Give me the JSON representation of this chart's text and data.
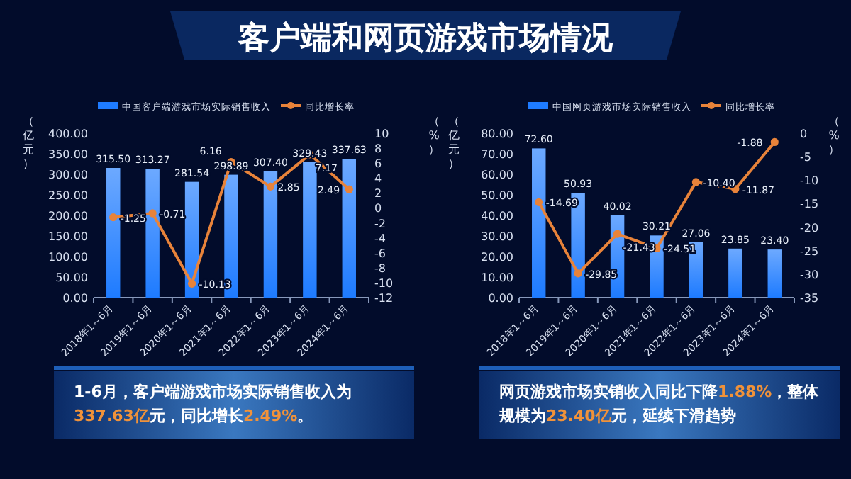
{
  "chart_data": [
    {
      "type": "bar",
      "title": "客户端和网页游戏市场情况",
      "ylabel": "（亿元）",
      "categories": [
        "2018年1～6月",
        "2019年1～6月",
        "2020年1～6月",
        "2021年1～6月",
        "2022年1～6月",
        "2023年1～6月",
        "2024年1～6月"
      ],
      "series": [
        {
          "name": "中国客户端游戏市场实际销售收入",
          "color": "#1e7bff",
          "values": [
            315.5,
            313.27,
            281.54,
            298.89,
            307.4,
            329.43,
            337.63
          ],
          "value_labels": [
            "315.50",
            "313.27",
            "281.54",
            "298.89",
            "307.40",
            "329.43",
            "337.63"
          ]
        },
        {
          "name": "同比增长率",
          "type": "line",
          "axis": "y2",
          "color": "#e8833a",
          "values": [
            -1.25,
            -0.71,
            -10.13,
            6.16,
            2.85,
            7.17,
            2.49
          ],
          "value_labels": [
            "-1.25",
            "-0.71",
            "-10.13",
            "6.16",
            "2.85",
            "7.17",
            "2.49"
          ]
        }
      ],
      "ylim": [
        0,
        400
      ],
      "yticks": [
        {
          "value": 0,
          "label": "0.00"
        },
        {
          "value": 50,
          "label": "50.00"
        },
        {
          "value": 100,
          "label": "100.00"
        },
        {
          "value": 150,
          "label": "150.00"
        },
        {
          "value": 200,
          "label": "200.00"
        },
        {
          "value": 250,
          "label": "250.00"
        },
        {
          "value": 300,
          "label": "300.00"
        },
        {
          "value": 350,
          "label": "350.00"
        },
        {
          "value": 400,
          "label": "400.00"
        }
      ],
      "y2lim": [
        -12,
        10
      ],
      "y2ticks": [
        -12,
        -10,
        -8,
        -6,
        -4,
        -2,
        0,
        2,
        4,
        6,
        8,
        10
      ],
      "marker": "circle",
      "legend": "top",
      "grid": false,
      "annotations": [
        "1-6月，客户端游戏市场实际销售收入为337.63亿元，同比增长2.49%。"
      ]
    },
    {
      "type": "bar",
      "ylabel": "（亿元）",
      "y2label": "（%）",
      "categories": [
        "2018年1～6月",
        "2019年1～6月",
        "2020年1～6月",
        "2021年1～6月",
        "2022年1～6月",
        "2023年1～6月",
        "2024年1～6月"
      ],
      "series": [
        {
          "name": "中国网页游戏市场实际销售收入",
          "color": "#1e7bff",
          "values": [
            72.6,
            50.93,
            40.02,
            30.21,
            27.06,
            23.85,
            23.4
          ],
          "value_labels": [
            "72.60",
            "50.93",
            "40.02",
            "30.21",
            "27.06",
            "23.85",
            "23.40"
          ]
        },
        {
          "name": "同比增长率",
          "type": "line",
          "axis": "y2",
          "color": "#e8833a",
          "values": [
            -14.69,
            -29.85,
            -21.43,
            -24.51,
            -10.4,
            -11.87,
            -1.88
          ],
          "value_labels": [
            "-14.69",
            "-29.85",
            "-21.43",
            "-24.51",
            "-10.40",
            "-11.87",
            "-1.88"
          ]
        }
      ],
      "ylim": [
        0,
        80
      ],
      "yticks": [
        {
          "value": 0,
          "label": "0.00"
        },
        {
          "value": 10,
          "label": "10.00"
        },
        {
          "value": 20,
          "label": "20.00"
        },
        {
          "value": 30,
          "label": "30.00"
        },
        {
          "value": 40,
          "label": "40.00"
        },
        {
          "value": 50,
          "label": "50.00"
        },
        {
          "value": 60,
          "label": "60.00"
        },
        {
          "value": 70,
          "label": "70.00"
        },
        {
          "value": 80,
          "label": "80.00"
        }
      ],
      "y2lim": [
        -35,
        0
      ],
      "y2ticks": [
        -35,
        -30,
        -25,
        -20,
        -15,
        -10,
        -5,
        0
      ],
      "marker": "circle",
      "legend": "top",
      "grid": false,
      "annotations": [
        "（%）",
        "网页游戏市场实销收入同比下降1.88%，整体规模为23.40亿元，延续下滑趋势"
      ]
    }
  ]
}
